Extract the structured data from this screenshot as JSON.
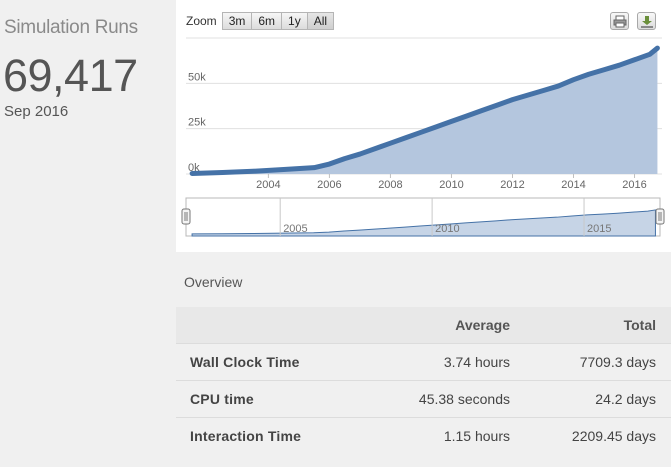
{
  "metric": {
    "title": "Simulation Runs",
    "value": "69,417",
    "date": "Sep 2016"
  },
  "chart": {
    "zoom_label": "Zoom",
    "zoom_buttons": [
      "3m",
      "6m",
      "1y",
      "All"
    ],
    "export": [
      "print-icon",
      "download-icon"
    ],
    "colors": {
      "line": "#4572a7",
      "fill": "#b4c6de",
      "nav_line": "#4572a7",
      "nav_fill": "#c6d4e6"
    }
  },
  "chart_data": {
    "type": "area",
    "title": "",
    "xlabel": "",
    "ylabel": "",
    "x": [
      2001.5,
      2002.5,
      2003.5,
      2004.5,
      2005.5,
      2006.0,
      2006.5,
      2007.0,
      2007.5,
      2008.0,
      2008.5,
      2009.0,
      2009.5,
      2010.0,
      2010.5,
      2011.0,
      2011.5,
      2012.0,
      2012.5,
      2013.0,
      2013.5,
      2014.0,
      2014.5,
      2015.0,
      2015.5,
      2016.0,
      2016.5,
      2016.75
    ],
    "values": [
      300,
      800,
      1500,
      2500,
      3500,
      5500,
      8500,
      11000,
      14000,
      17000,
      20000,
      23000,
      26000,
      29000,
      32000,
      35000,
      38000,
      41000,
      43500,
      46000,
      48500,
      52000,
      55000,
      57500,
      60000,
      63000,
      66000,
      69417
    ],
    "ylim": [
      0,
      75000
    ],
    "y_ticks": [
      "0k",
      "25k",
      "50k"
    ],
    "x_ticks": [
      "2004",
      "2006",
      "2008",
      "2010",
      "2012",
      "2014",
      "2016"
    ],
    "navigator_ticks": [
      "2005",
      "2010",
      "2015"
    ],
    "grid": true,
    "legend": "none"
  },
  "overview": {
    "title": "Overview",
    "columns": [
      "",
      "Average",
      "Total"
    ],
    "rows": [
      {
        "label": "Wall Clock Time",
        "average": "3.74 hours",
        "total": "7709.3 days"
      },
      {
        "label": "CPU time",
        "average": "45.38 seconds",
        "total": "24.2 days"
      },
      {
        "label": "Interaction Time",
        "average": "1.15 hours",
        "total": "2209.45 days"
      }
    ]
  }
}
